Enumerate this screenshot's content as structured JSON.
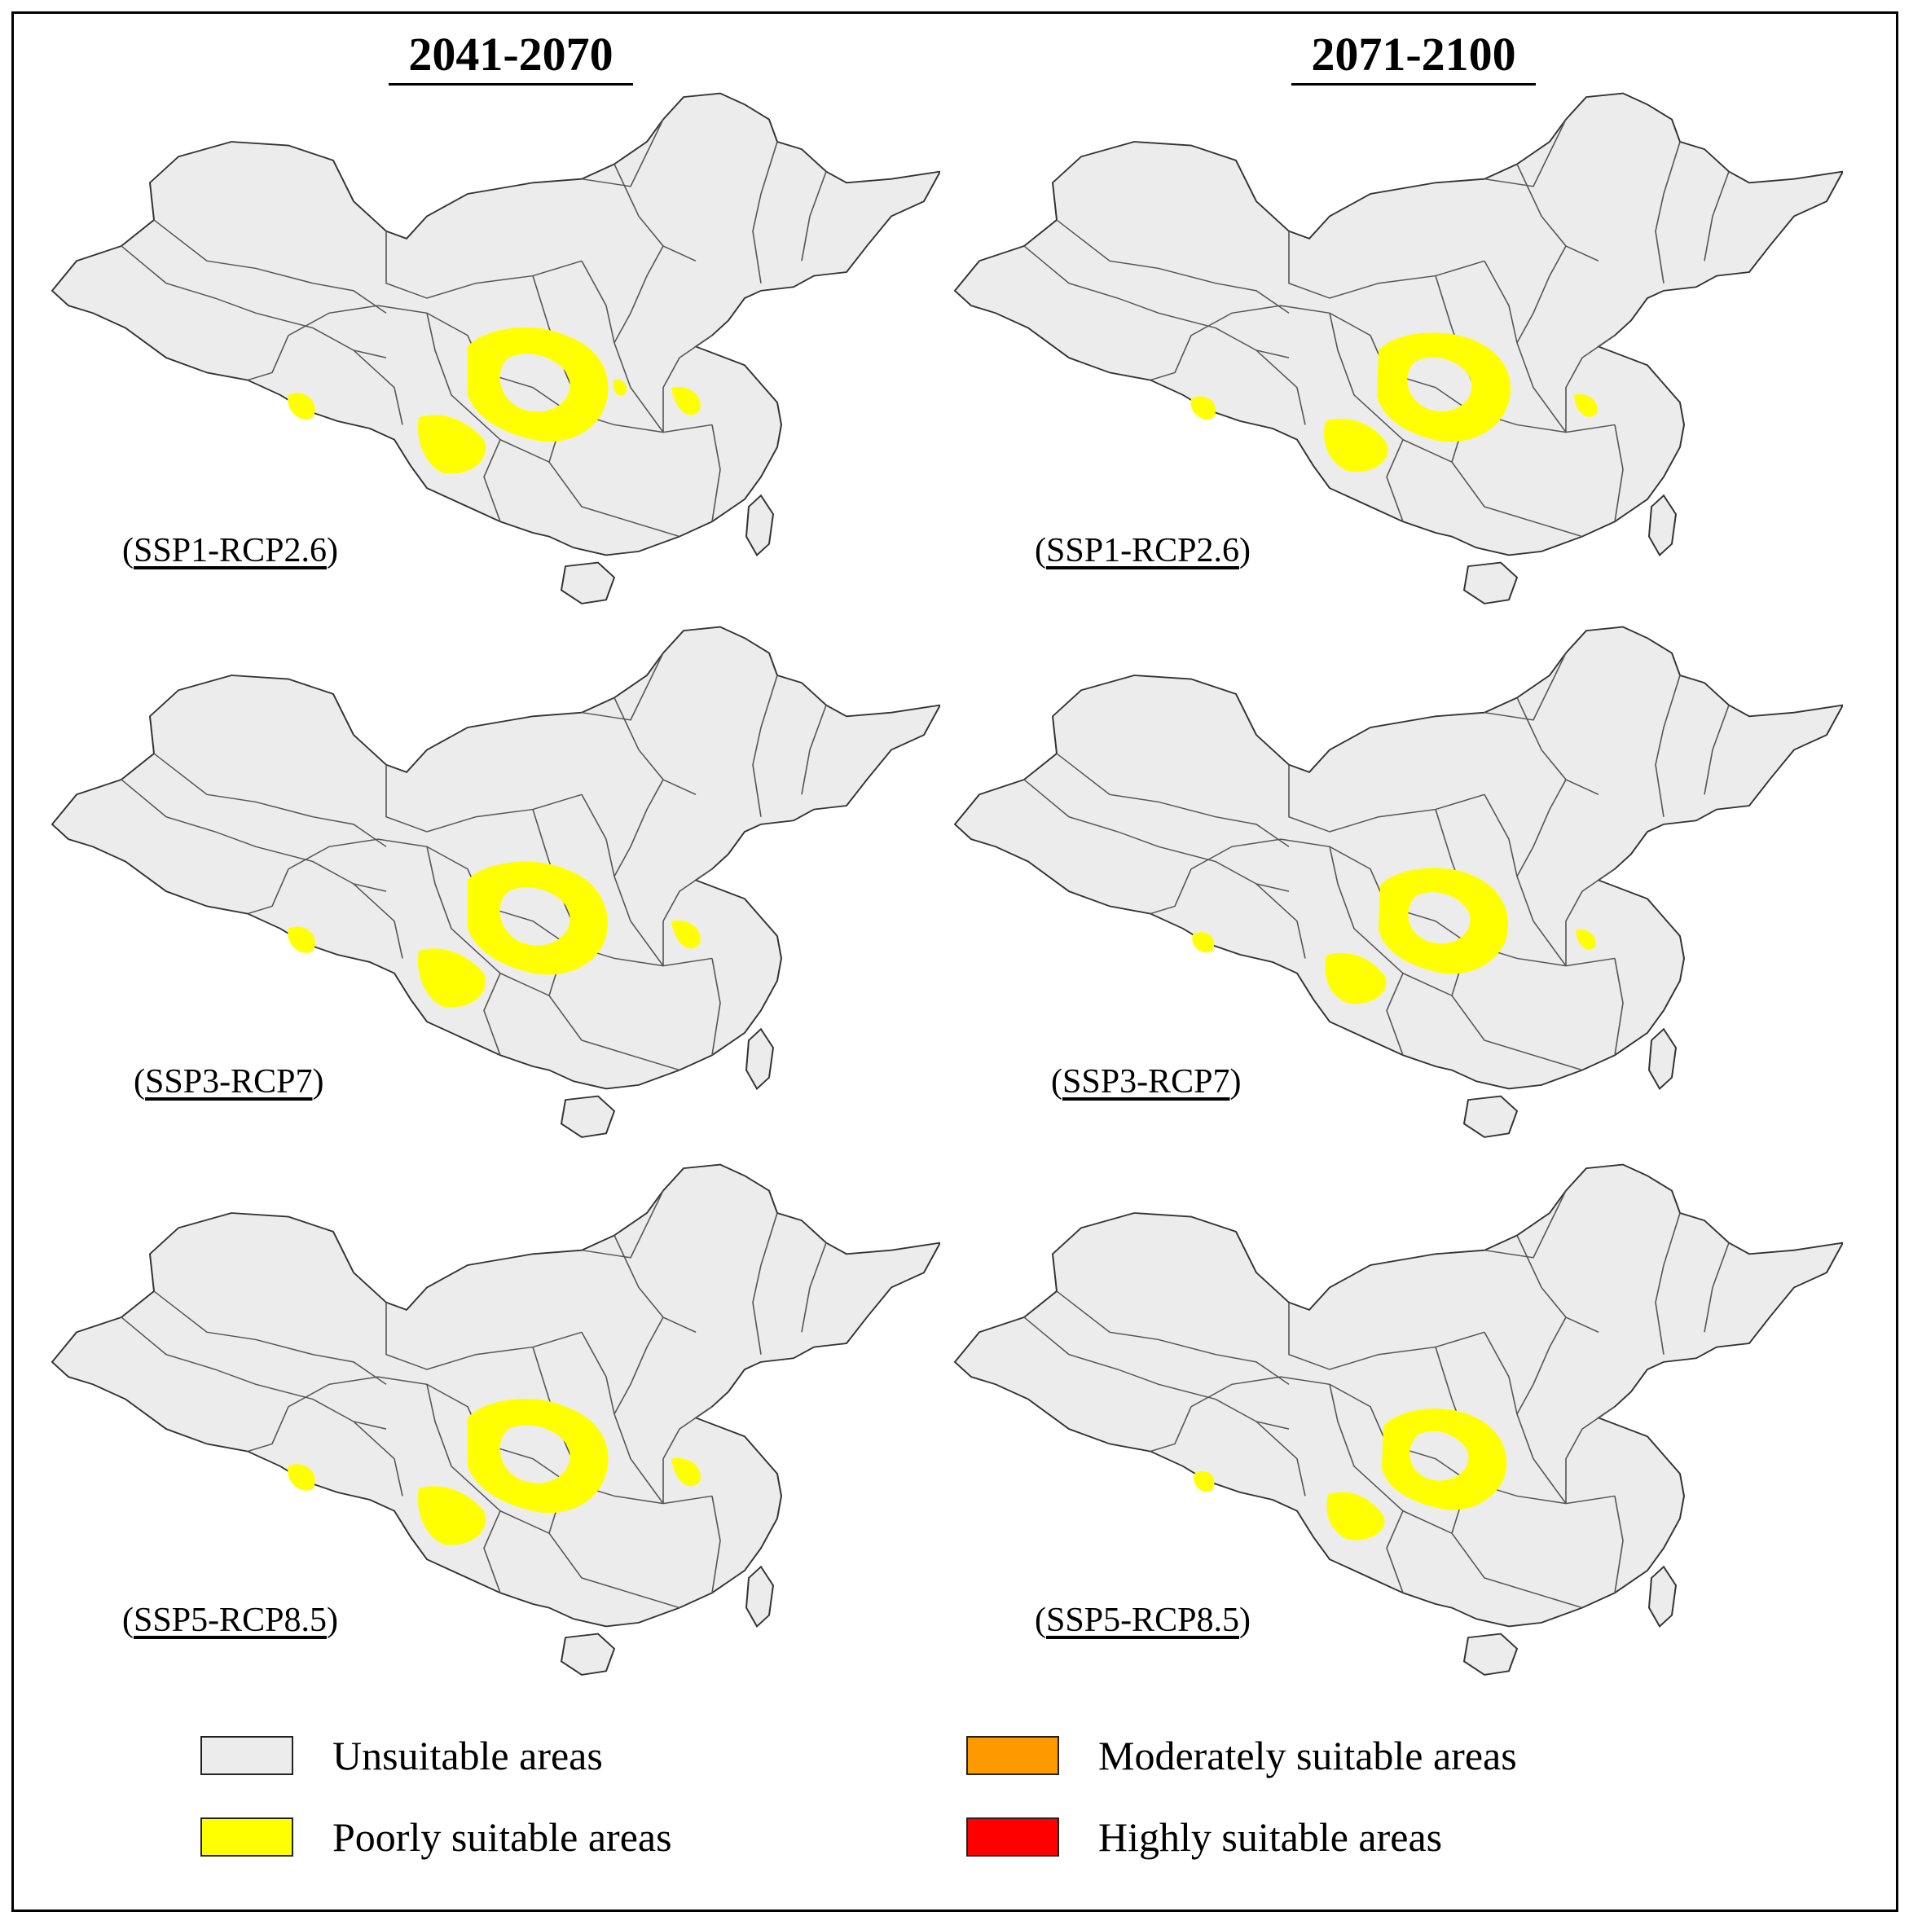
{
  "columns": [
    {
      "title": "2041-2070"
    },
    {
      "title": "2071-2100"
    }
  ],
  "panels": [
    {
      "period": "2041-2070",
      "scenario": "SSP1-RCP2.6"
    },
    {
      "period": "2071-2100",
      "scenario": "SSP1-RCP2.6"
    },
    {
      "period": "2041-2070",
      "scenario": "SSP3-RCP7"
    },
    {
      "period": "2071-2100",
      "scenario": "SSP3-RCP7"
    },
    {
      "period": "2041-2070",
      "scenario": "SSP5-RCP8.5"
    },
    {
      "period": "2071-2100",
      "scenario": "SSP5-RCP8.5"
    }
  ],
  "legend": [
    {
      "label": "Unsuitable areas",
      "color": "#ececec"
    },
    {
      "label": "Moderately suitable areas",
      "color": "#ff9900"
    },
    {
      "label": "Poorly suitable areas",
      "color": "#ffff00"
    },
    {
      "label": "Highly suitable areas",
      "color": "#ff0000"
    }
  ]
}
